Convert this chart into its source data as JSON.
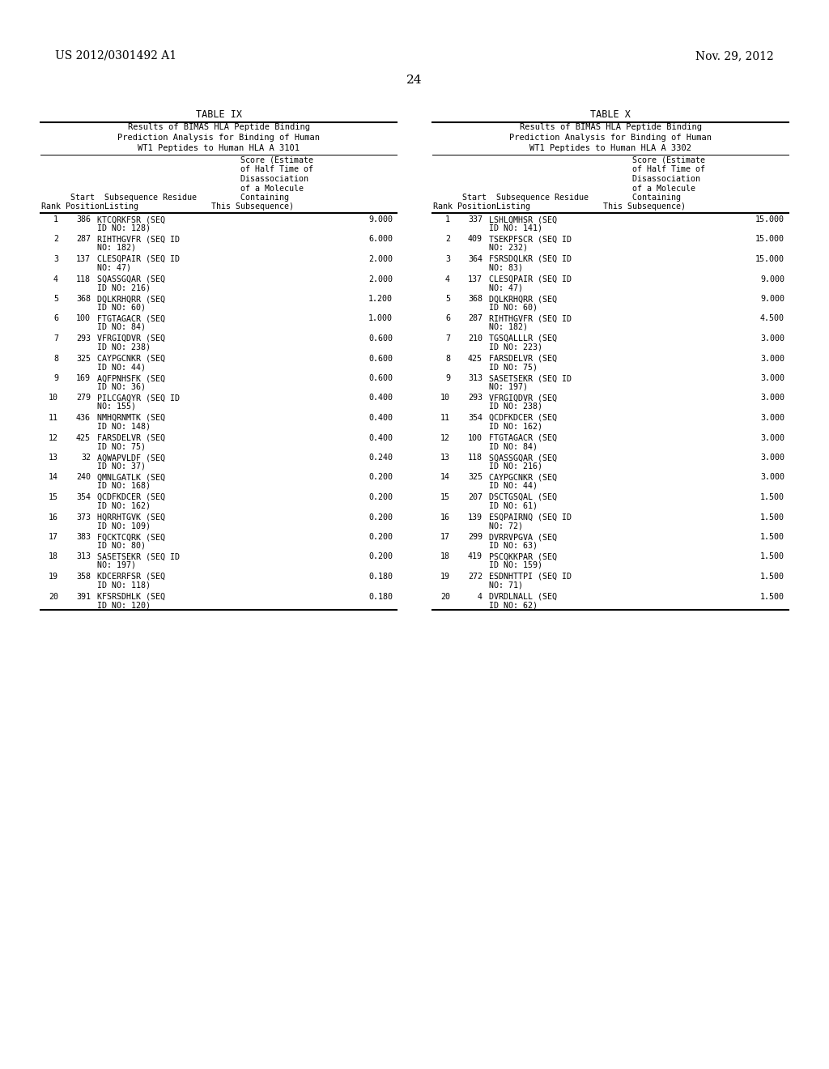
{
  "header_left": "US 2012/0301492 A1",
  "header_right": "Nov. 29, 2012",
  "page_number": "24",
  "table_ix_title": "TABLE IX",
  "table_ix_subtitle_lines": [
    "Results of BIMAS HLA Peptide Binding",
    "Prediction Analysis for Binding of Human",
    "WT1 Peptides to Human HLA A 3101"
  ],
  "table_x_title": "TABLE X",
  "table_x_subtitle_lines": [
    "Results of BIMAS HLA Peptide Binding",
    "Prediction Analysis for Binding of Human",
    "WT1 Peptides to Human HLA A 3302"
  ],
  "col_headers": [
    "                                         Score (Estimate",
    "                                         of Half Time of",
    "                                         Disassociation",
    "                                         of a Molecule",
    "      Start  Subsequence Residue         Containing",
    "Rank PositionListing               This Subsequence)"
  ],
  "table_ix_data": [
    [
      1,
      386,
      "KTCQRKFSR (SEQ",
      "ID NO: 128)",
      "9.000"
    ],
    [
      2,
      287,
      "RIHTHGVFR (SEQ ID",
      "NO: 182)",
      "6.000"
    ],
    [
      3,
      137,
      "CLESQPAIR (SEQ ID",
      "NO: 47)",
      "2.000"
    ],
    [
      4,
      118,
      "SQASSGQAR (SEQ",
      "ID NO: 216)",
      "2.000"
    ],
    [
      5,
      368,
      "DQLKRHQRR (SEQ",
      "ID NO: 60)",
      "1.200"
    ],
    [
      6,
      100,
      "FTGTAGACR (SEQ",
      "ID NO: 84)",
      "1.000"
    ],
    [
      7,
      293,
      "VFRGIQDVR (SEQ",
      "ID NO: 238)",
      "0.600"
    ],
    [
      8,
      325,
      "CAYPGCNKR (SEQ",
      "ID NO: 44)",
      "0.600"
    ],
    [
      9,
      169,
      "AQFPNHSFK (SEQ",
      "ID NO: 36)",
      "0.600"
    ],
    [
      10,
      279,
      "PILCGAQYR (SEQ ID",
      "NO: 155)",
      "0.400"
    ],
    [
      11,
      436,
      "NMHQRNMTK (SEQ",
      "ID NO: 148)",
      "0.400"
    ],
    [
      12,
      425,
      "FARSDELVR (SEQ",
      "ID NO: 75)",
      "0.400"
    ],
    [
      13,
      32,
      "AQWAPVLDF (SEQ",
      "ID NO: 37)",
      "0.240"
    ],
    [
      14,
      240,
      "QMNLGATLK (SEQ",
      "ID NO: 168)",
      "0.200"
    ],
    [
      15,
      354,
      "QCDFKDCER (SEQ",
      "ID NO: 162)",
      "0.200"
    ],
    [
      16,
      373,
      "HQRRHTGVK (SEQ",
      "ID NO: 109)",
      "0.200"
    ],
    [
      17,
      383,
      "FQCKTCQRK (SEQ",
      "ID NO: 80)",
      "0.200"
    ],
    [
      18,
      313,
      "SASETSEKR (SEQ ID",
      "NO: 197)",
      "0.200"
    ],
    [
      19,
      358,
      "KDCERRFSR (SEQ",
      "ID NO: 118)",
      "0.180"
    ],
    [
      20,
      391,
      "KFSRSDHLK (SEQ",
      "ID NO: 120)",
      "0.180"
    ]
  ],
  "table_x_data": [
    [
      1,
      337,
      "LSHLQMHSR (SEQ",
      "ID NO: 141)",
      "15.000"
    ],
    [
      2,
      409,
      "TSEKPFSCR (SEQ ID",
      "NO: 232)",
      "15.000"
    ],
    [
      3,
      364,
      "FSRSDQLKR (SEQ ID",
      "NO: 83)",
      "15.000"
    ],
    [
      4,
      137,
      "CLESQPAIR (SEQ ID",
      "NO: 47)",
      "9.000"
    ],
    [
      5,
      368,
      "DQLKRHQRR (SEQ",
      "ID NO: 60)",
      "9.000"
    ],
    [
      6,
      287,
      "RIHTHGVFR (SEQ ID",
      "NO: 182)",
      "4.500"
    ],
    [
      7,
      210,
      "TGSQALLLR (SEQ",
      "ID NO: 223)",
      "3.000"
    ],
    [
      8,
      425,
      "FARSDELVR (SEQ",
      "ID NO: 75)",
      "3.000"
    ],
    [
      9,
      313,
      "SASETSEKR (SEQ ID",
      "NO: 197)",
      "3.000"
    ],
    [
      10,
      293,
      "VFRGIQDVR (SEQ",
      "ID NO: 238)",
      "3.000"
    ],
    [
      11,
      354,
      "QCDFKDCER (SEQ",
      "ID NO: 162)",
      "3.000"
    ],
    [
      12,
      100,
      "FTGTAGACR (SEQ",
      "ID NO: 84)",
      "3.000"
    ],
    [
      13,
      118,
      "SQASSGQAR (SEQ",
      "ID NO: 216)",
      "3.000"
    ],
    [
      14,
      325,
      "CAYPGCNKR (SEQ",
      "ID NO: 44)",
      "3.000"
    ],
    [
      15,
      207,
      "DSCTGSQAL (SEQ",
      "ID NO: 61)",
      "1.500"
    ],
    [
      16,
      139,
      "ESQPAIRNQ (SEQ ID",
      "NO: 72)",
      "1.500"
    ],
    [
      17,
      299,
      "DVRRVPGVA (SEQ",
      "ID NO: 63)",
      "1.500"
    ],
    [
      18,
      419,
      "PSCQKKPAR (SEQ",
      "ID NO: 159)",
      "1.500"
    ],
    [
      19,
      272,
      "ESDNHTTPI (SEQ ID",
      "NO: 71)",
      "1.500"
    ],
    [
      20,
      4,
      "DVRDLNALL (SEQ",
      "ID NO: 62)",
      "1.500"
    ]
  ],
  "bg": "#ffffff",
  "fg": "#000000"
}
